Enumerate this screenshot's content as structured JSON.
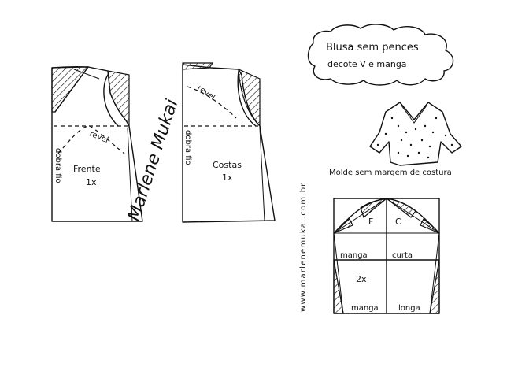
{
  "title": {
    "line1": "Blusa sem pences",
    "line2": "decote V e manga"
  },
  "front_piece": {
    "name": "Frente",
    "quantity": "1x",
    "fold_label": "dobra fio",
    "facing_label": "revel"
  },
  "back_piece": {
    "name": "Costas",
    "quantity": "1x",
    "fold_label": "dobra fio",
    "facing_label": "revel"
  },
  "caption": "Molde sem margem de costura",
  "sleeve": {
    "label_f": "F",
    "label_c": "C",
    "quantity": "2x",
    "short_left": "manga",
    "short_right": "curta",
    "long_left": "manga",
    "long_right": "longa"
  },
  "signature": "Marlene Mukai",
  "website": "www.marlenemukai.com.br"
}
